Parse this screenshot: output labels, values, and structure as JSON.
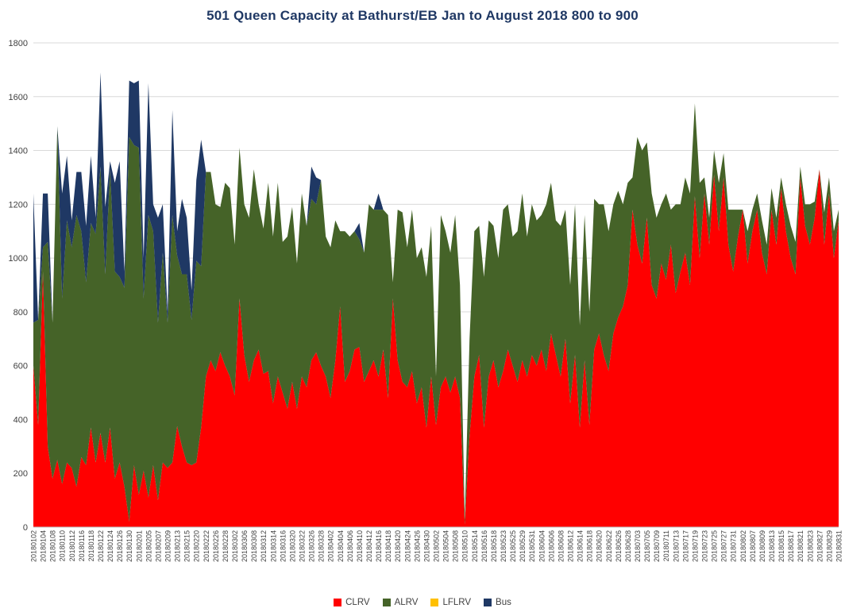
{
  "title": "501 Queen Capacity at Bathurst/EB Jan to August 2018 800 to 900",
  "colors": {
    "grid": "#D9D9D9",
    "axis_text": "#404040",
    "axis_line": "#BFBFBF",
    "title": "#1F3864",
    "background": "#FFFFFF"
  },
  "chart_data": {
    "type": "area",
    "stacked": true,
    "title": "501 Queen Capacity at Bathurst/EB Jan to August 2018 800 to 900",
    "xlabel": "",
    "ylabel": "",
    "ylim": [
      0,
      1800
    ],
    "yticks": [
      0,
      200,
      400,
      600,
      800,
      1000,
      1200,
      1400,
      1600,
      1800
    ],
    "grid": true,
    "legend_position": "bottom",
    "x_label_every": 2,
    "x": [
      "20180102",
      "20180103",
      "20180104",
      "20180105",
      "20180108",
      "20180109",
      "20180110",
      "20180111",
      "20180112",
      "20180115",
      "20180116",
      "20180117",
      "20180118",
      "20180119",
      "20180122",
      "20180123",
      "20180124",
      "20180125",
      "20180126",
      "20180129",
      "20180130",
      "20180131",
      "20180201",
      "20180202",
      "20180205",
      "20180206",
      "20180207",
      "20180208",
      "20180209",
      "20180212",
      "20180213",
      "20180214",
      "20180215",
      "20180216",
      "20180220",
      "20180221",
      "20180222",
      "20180223",
      "20180226",
      "20180227",
      "20180228",
      "20180301",
      "20180302",
      "20180305",
      "20180306",
      "20180307",
      "20180308",
      "20180309",
      "20180312",
      "20180313",
      "20180314",
      "20180315",
      "20180316",
      "20180319",
      "20180320",
      "20180321",
      "20180322",
      "20180323",
      "20180326",
      "20180327",
      "20180328",
      "20180329",
      "20180402",
      "20180403",
      "20180404",
      "20180405",
      "20180406",
      "20180409",
      "20180410",
      "20180411",
      "20180412",
      "20180413",
      "20180416",
      "20180417",
      "20180418",
      "20180419",
      "20180420",
      "20180423",
      "20180424",
      "20180425",
      "20180426",
      "20180427",
      "20180430",
      "20180501",
      "20180502",
      "20180503",
      "20180504",
      "20180507",
      "20180508",
      "20180509",
      "20180510",
      "20180511",
      "20180514",
      "20180515",
      "20180516",
      "20180517",
      "20180518",
      "20180522",
      "20180523",
      "20180524",
      "20180525",
      "20180528",
      "20180529",
      "20180530",
      "20180531",
      "20180601",
      "20180604",
      "20180605",
      "20180606",
      "20180607",
      "20180608",
      "20180611",
      "20180612",
      "20180613",
      "20180614",
      "20180615",
      "20180618",
      "20180619",
      "20180620",
      "20180621",
      "20180622",
      "20180625",
      "20180626",
      "20180627",
      "20180628",
      "20180629",
      "20180703",
      "20180704",
      "20180705",
      "20180706",
      "20180709",
      "20180710",
      "20180711",
      "20180712",
      "20180713",
      "20180716",
      "20180717",
      "20180718",
      "20180719",
      "20180720",
      "20180723",
      "20180724",
      "20180725",
      "20180726",
      "20180727",
      "20180730",
      "20180731",
      "20180801",
      "20180802",
      "20180803",
      "20180807",
      "20180808",
      "20180809",
      "20180810",
      "20180813",
      "20180814",
      "20180815",
      "20180816",
      "20180817",
      "20180820",
      "20180821",
      "20180822",
      "20180823",
      "20180824",
      "20180827",
      "20180828",
      "20180829",
      "20180830",
      "20180831"
    ],
    "series": [
      {
        "name": "CLRV",
        "color": "#FF0000",
        "values": [
          600,
          380,
          950,
          300,
          180,
          250,
          160,
          240,
          220,
          150,
          260,
          230,
          370,
          240,
          350,
          240,
          370,
          180,
          240,
          150,
          20,
          230,
          120,
          210,
          110,
          230,
          100,
          240,
          220,
          240,
          375,
          300,
          240,
          230,
          240,
          370,
          560,
          620,
          580,
          650,
          600,
          560,
          490,
          850,
          640,
          540,
          620,
          660,
          570,
          580,
          460,
          560,
          500,
          440,
          540,
          440,
          560,
          520,
          620,
          650,
          600,
          560,
          480,
          620,
          820,
          540,
          580,
          660,
          670,
          540,
          580,
          620,
          560,
          660,
          480,
          850,
          620,
          540,
          520,
          580,
          460,
          520,
          370,
          560,
          380,
          520,
          560,
          500,
          560,
          480,
          10,
          340,
          560,
          640,
          370,
          560,
          620,
          520,
          580,
          660,
          600,
          540,
          620,
          560,
          640,
          600,
          660,
          580,
          720,
          640,
          560,
          700,
          460,
          640,
          370,
          620,
          380,
          660,
          720,
          640,
          580,
          720,
          780,
          820,
          900,
          1180,
          1050,
          980,
          1150,
          900,
          850,
          980,
          920,
          1050,
          870,
          950,
          1020,
          900,
          1230,
          1000,
          1240,
          1050,
          1310,
          1100,
          1300,
          1050,
          950,
          1080,
          1180,
          980,
          1100,
          1180,
          1020,
          940,
          1180,
          1050,
          1260,
          1100,
          1000,
          940,
          1300,
          1120,
          1050,
          1150,
          1330,
          1050,
          1240,
          1000,
          1140
        ]
      },
      {
        "name": "ALRV",
        "color": "#456328",
        "values": [
          160,
          390,
          90,
          760,
          580,
          1240,
          690,
          900,
          820,
          1010,
          840,
          680,
          760,
          850,
          990,
          700,
          960,
          770,
          690,
          740,
          1430,
          1190,
          1290,
          640,
          1050,
          870,
          660,
          780,
          540,
          920,
          635,
          640,
          700,
          540,
          750,
          600,
          760,
          700,
          620,
          540,
          680,
          700,
          560,
          560,
          560,
          610,
          710,
          540,
          540,
          700,
          620,
          720,
          560,
          640,
          650,
          540,
          680,
          600,
          600,
          550,
          690,
          520,
          560,
          520,
          280,
          560,
          500,
          440,
          400,
          480,
          620,
          560,
          620,
          520,
          680,
          60,
          560,
          630,
          520,
          600,
          540,
          520,
          560,
          560,
          180,
          640,
          540,
          520,
          600,
          420,
          20,
          360,
          540,
          480,
          560,
          580,
          500,
          480,
          600,
          540,
          480,
          560,
          620,
          520,
          560,
          540,
          500,
          620,
          560,
          500,
          560,
          480,
          440,
          560,
          380,
          540,
          420,
          560,
          480,
          560,
          520,
          480,
          470,
          380,
          380,
          120,
          400,
          420,
          280,
          340,
          300,
          220,
          320,
          130,
          330,
          250,
          280,
          340,
          345,
          280,
          60,
          100,
          90,
          180,
          90,
          130,
          230,
          100,
          0,
          120,
          80,
          60,
          120,
          110,
          80,
          100,
          40,
          100,
          120,
          120,
          40,
          80,
          150,
          60,
          0,
          120,
          60,
          100,
          40
        ]
      },
      {
        "name": "LFLRV",
        "color": "#FFC000",
        "values": [
          0,
          0,
          0,
          0,
          0,
          0,
          0,
          0,
          0,
          0,
          0,
          0,
          0,
          0,
          0,
          0,
          0,
          0,
          0,
          0,
          0,
          0,
          0,
          0,
          0,
          0,
          0,
          0,
          0,
          0,
          0,
          0,
          0,
          0,
          0,
          0,
          0,
          0,
          0,
          0,
          0,
          0,
          0,
          0,
          0,
          0,
          0,
          0,
          0,
          0,
          0,
          0,
          0,
          0,
          0,
          0,
          0,
          0,
          0,
          0,
          0,
          0,
          0,
          0,
          0,
          0,
          0,
          0,
          0,
          0,
          0,
          0,
          0,
          0,
          0,
          0,
          0,
          0,
          0,
          0,
          0,
          0,
          0,
          0,
          0,
          0,
          0,
          0,
          0,
          0,
          0,
          0,
          0,
          0,
          0,
          0,
          0,
          0,
          0,
          0,
          0,
          0,
          0,
          0,
          0,
          0,
          0,
          0,
          0,
          0,
          0,
          0,
          0,
          0,
          0,
          0,
          0,
          0,
          0,
          0,
          0,
          0,
          0,
          0,
          0,
          0,
          0,
          0,
          0,
          0,
          0,
          0,
          0,
          0,
          0,
          0,
          0,
          0,
          0,
          0,
          0,
          0,
          0,
          0,
          0,
          0,
          0,
          0,
          0,
          0,
          0,
          0,
          0,
          0,
          0,
          0,
          0,
          0,
          0,
          0,
          0,
          0,
          0,
          0,
          0,
          0,
          0,
          0,
          0
        ]
      },
      {
        "name": "Bus",
        "color": "#1F3864",
        "values": [
          480,
          0,
          200,
          180,
          0,
          0,
          390,
          240,
          100,
          160,
          220,
          210,
          250,
          60,
          350,
          250,
          30,
          330,
          430,
          60,
          210,
          230,
          250,
          150,
          490,
          100,
          390,
          180,
          40,
          390,
          90,
          280,
          210,
          110,
          300,
          470,
          0,
          0,
          0,
          0,
          0,
          0,
          0,
          0,
          0,
          0,
          0,
          0,
          0,
          0,
          0,
          0,
          0,
          0,
          0,
          0,
          0,
          0,
          120,
          100,
          0,
          0,
          0,
          0,
          0,
          0,
          0,
          0,
          60,
          0,
          0,
          0,
          60,
          0,
          0,
          0,
          0,
          0,
          0,
          0,
          0,
          0,
          0,
          0,
          0,
          0,
          0,
          0,
          0,
          0,
          0,
          0,
          0,
          0,
          0,
          0,
          0,
          0,
          0,
          0,
          0,
          0,
          0,
          0,
          0,
          0,
          0,
          0,
          0,
          0,
          0,
          0,
          0,
          0,
          0,
          0,
          0,
          0,
          0,
          0,
          0,
          0,
          0,
          0,
          0,
          0,
          0,
          0,
          0,
          0,
          0,
          0,
          0,
          0,
          0,
          0,
          0,
          0,
          0,
          0,
          0,
          0,
          0,
          0,
          0,
          0,
          0,
          0,
          0,
          0,
          0,
          0,
          0,
          0,
          0,
          0,
          0,
          0,
          0,
          0,
          0,
          0,
          0,
          0,
          0,
          0,
          0,
          0,
          0
        ]
      }
    ]
  }
}
